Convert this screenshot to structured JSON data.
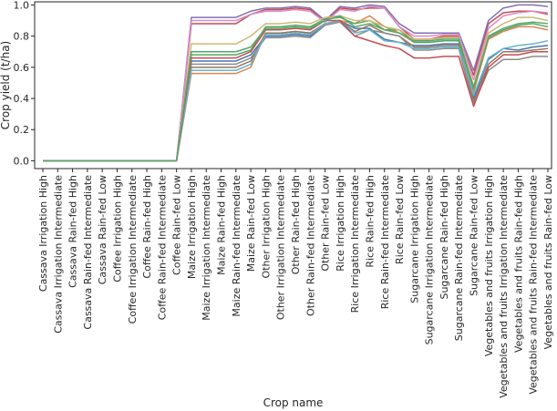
{
  "chart_data": {
    "type": "line",
    "title": "",
    "xlabel": "Crop name",
    "ylabel": "Crop yield (t/ha)",
    "ylim": [
      -0.05,
      1.02
    ],
    "yticks": [
      0.0,
      0.2,
      0.4,
      0.6,
      0.8,
      1.0
    ],
    "ytick_labels": [
      "0.0",
      "0.2",
      "0.4",
      "0.6",
      "0.8",
      "1.0"
    ],
    "grid": false,
    "legend": "none",
    "categories": [
      "Cassava Irrigation High",
      "Cassava Irrigation Intermediate",
      "Cassava Rain-fed High",
      "Cassava Rain-fed Intermediate",
      "Cassava Rain-fed Low",
      "Coffee Irrigation High",
      "Coffee Irrigation Intermediate",
      "Coffee Rain-fed High",
      "Coffee Rain-fed Intermediate",
      "Coffee Rain-fed Low",
      "Maize Irrigation High",
      "Maize Irrigation Intermediate",
      "Maize Rain-fed High",
      "Maize Rain-fed Intermediate",
      "Maize Rain-fed Low",
      "Other Irrigation High",
      "Other Irrigation Intermediate",
      "Other Rain-fed High",
      "Other Rain-fed Intermediate",
      "Other Rain-fed Low",
      "Rice Irrigation High",
      "Rice Irrigation Intermediate",
      "Rice Rain-fed High",
      "Rice Rain-fed Intermediate",
      "Rice Rain-fed Low",
      "Sugarcane Irrigation High",
      "Sugarcane Irrigation Intermediate",
      "Sugarcane Rain-fed High",
      "Sugarcane Rain-fed Intermediate",
      "Sugarcane Rain-fed Low",
      "Vegetables and fruits Irrigation High",
      "Vegetables and fruits Irrigation Intermediate",
      "Vegetables and fruits Rain-fed High",
      "Vegetables and fruits Rain-fed Intermediate",
      "Vegetables and fruits Rain-fed Low"
    ],
    "series": [
      {
        "color": "#4c72b0",
        "values": [
          0,
          0,
          0,
          0,
          0,
          0,
          0,
          0,
          0,
          0,
          0.64,
          0.64,
          0.64,
          0.64,
          0.68,
          0.8,
          0.8,
          0.81,
          0.8,
          0.88,
          0.9,
          0.85,
          0.85,
          0.78,
          0.76,
          0.74,
          0.74,
          0.75,
          0.75,
          0.4,
          0.65,
          0.72,
          0.71,
          0.73,
          0.74
        ]
      },
      {
        "color": "#dd8452",
        "values": [
          0,
          0,
          0,
          0,
          0,
          0,
          0,
          0,
          0,
          0,
          0.56,
          0.56,
          0.56,
          0.56,
          0.6,
          0.82,
          0.82,
          0.83,
          0.82,
          0.88,
          0.9,
          0.88,
          0.93,
          0.86,
          0.82,
          0.76,
          0.76,
          0.77,
          0.77,
          0.44,
          0.78,
          0.83,
          0.86,
          0.86,
          0.84
        ]
      },
      {
        "color": "#55a868",
        "values": [
          0,
          0,
          0,
          0,
          0,
          0,
          0,
          0,
          0,
          0,
          0.68,
          0.68,
          0.68,
          0.68,
          0.71,
          0.86,
          0.86,
          0.87,
          0.86,
          0.91,
          0.92,
          0.88,
          0.9,
          0.84,
          0.84,
          0.76,
          0.76,
          0.77,
          0.77,
          0.46,
          0.8,
          0.85,
          0.88,
          0.89,
          0.88
        ]
      },
      {
        "color": "#c44e52",
        "values": [
          0,
          0,
          0,
          0,
          0,
          0,
          0,
          0,
          0,
          0,
          0.88,
          0.88,
          0.88,
          0.88,
          0.94,
          0.97,
          0.97,
          0.98,
          0.97,
          0.9,
          0.98,
          0.97,
          0.98,
          0.98,
          0.86,
          0.78,
          0.78,
          0.8,
          0.8,
          0.55,
          0.88,
          0.95,
          0.96,
          0.96,
          0.94
        ]
      },
      {
        "color": "#8172b3",
        "values": [
          0,
          0,
          0,
          0,
          0,
          0,
          0,
          0,
          0,
          0,
          0.92,
          0.92,
          0.92,
          0.92,
          0.96,
          0.98,
          0.98,
          0.99,
          0.98,
          0.9,
          0.99,
          0.98,
          1.0,
          0.99,
          0.88,
          0.82,
          0.82,
          0.82,
          0.82,
          0.58,
          0.9,
          0.98,
          1.0,
          1.0,
          0.99
        ]
      },
      {
        "color": "#937860",
        "values": [
          0,
          0,
          0,
          0,
          0,
          0,
          0,
          0,
          0,
          0,
          0.6,
          0.6,
          0.6,
          0.6,
          0.64,
          0.82,
          0.82,
          0.83,
          0.82,
          0.88,
          0.9,
          0.83,
          0.87,
          0.82,
          0.8,
          0.73,
          0.73,
          0.74,
          0.74,
          0.38,
          0.62,
          0.7,
          0.7,
          0.71,
          0.72
        ]
      },
      {
        "color": "#da8bc3",
        "values": [
          0,
          0,
          0,
          0,
          0,
          0,
          0,
          0,
          0,
          0,
          0.9,
          0.9,
          0.9,
          0.9,
          0.94,
          0.96,
          0.96,
          0.97,
          0.96,
          0.89,
          0.97,
          0.96,
          0.99,
          0.98,
          0.86,
          0.8,
          0.8,
          0.81,
          0.81,
          0.52,
          0.85,
          0.93,
          0.95,
          0.96,
          0.95
        ]
      },
      {
        "color": "#8c8c8c",
        "values": [
          0,
          0,
          0,
          0,
          0,
          0,
          0,
          0,
          0,
          0,
          0.62,
          0.62,
          0.62,
          0.62,
          0.66,
          0.79,
          0.79,
          0.8,
          0.79,
          0.87,
          0.89,
          0.8,
          0.84,
          0.82,
          0.8,
          0.71,
          0.71,
          0.72,
          0.72,
          0.36,
          0.58,
          0.65,
          0.65,
          0.67,
          0.67
        ]
      },
      {
        "color": "#ccb974",
        "values": [
          0,
          0,
          0,
          0,
          0,
          0,
          0,
          0,
          0,
          0,
          0.75,
          0.75,
          0.75,
          0.75,
          0.8,
          0.88,
          0.88,
          0.89,
          0.88,
          0.92,
          0.93,
          0.9,
          0.9,
          0.86,
          0.84,
          0.78,
          0.78,
          0.79,
          0.79,
          0.48,
          0.82,
          0.88,
          0.92,
          0.92,
          0.9
        ]
      },
      {
        "color": "#64b5cd",
        "values": [
          0,
          0,
          0,
          0,
          0,
          0,
          0,
          0,
          0,
          0,
          0.58,
          0.58,
          0.58,
          0.58,
          0.62,
          0.81,
          0.81,
          0.82,
          0.81,
          0.88,
          0.9,
          0.82,
          0.84,
          0.77,
          0.76,
          0.72,
          0.72,
          0.73,
          0.73,
          0.42,
          0.66,
          0.72,
          0.74,
          0.75,
          0.77
        ]
      },
      {
        "color": "#c44e52",
        "values": [
          0,
          0,
          0,
          0,
          0,
          0,
          0,
          0,
          0,
          0,
          0.66,
          0.66,
          0.66,
          0.66,
          0.7,
          0.84,
          0.84,
          0.85,
          0.84,
          0.9,
          0.9,
          0.8,
          0.77,
          0.74,
          0.72,
          0.66,
          0.66,
          0.67,
          0.67,
          0.35,
          0.6,
          0.68,
          0.68,
          0.7,
          0.7
        ]
      },
      {
        "color": "#55a868",
        "values": [
          0,
          0,
          0,
          0,
          0,
          0,
          0,
          0,
          0,
          0,
          0.7,
          0.7,
          0.7,
          0.7,
          0.73,
          0.85,
          0.85,
          0.86,
          0.85,
          0.9,
          0.93,
          0.86,
          0.88,
          0.84,
          0.82,
          0.77,
          0.77,
          0.78,
          0.78,
          0.47,
          0.79,
          0.84,
          0.87,
          0.88,
          0.86
        ]
      }
    ]
  }
}
